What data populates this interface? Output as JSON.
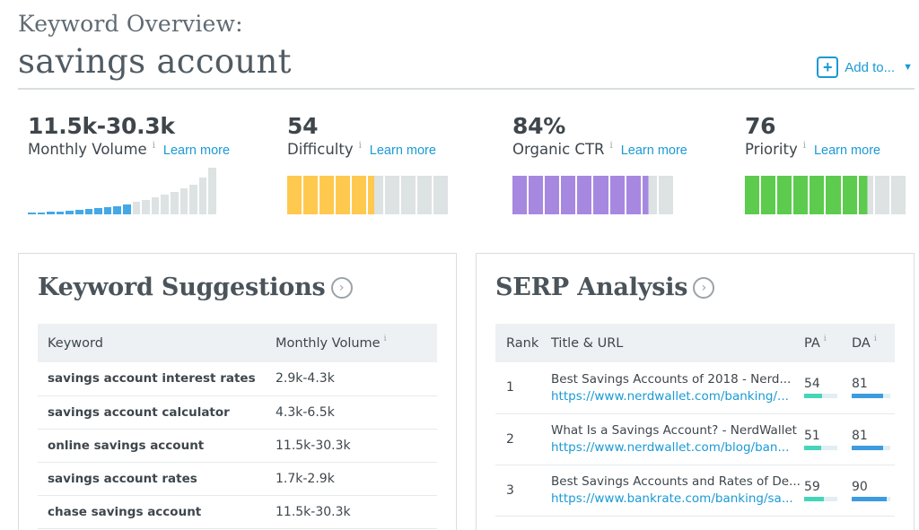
{
  "header": {
    "over_title": "Keyword Overview:",
    "keyword": "savings account",
    "add_to_label": "Add to..."
  },
  "metrics": [
    {
      "value": "11.5k-30.3k",
      "label": "Monthly Volume",
      "info": "i",
      "learn_more": "Learn more",
      "bar_type": "volume",
      "bar_count": 20,
      "filled_count": 11,
      "bar_levels": [
        0.04,
        0.04,
        0.05,
        0.06,
        0.08,
        0.09,
        0.11,
        0.13,
        0.15,
        0.18,
        0.22,
        0.27,
        0.31,
        0.36,
        0.42,
        0.49,
        0.56,
        0.64,
        0.78,
        1.0
      ],
      "fill_color": "#43a8e6",
      "empty_color": "#dde2e3"
    },
    {
      "value": "54",
      "label": "Difficulty",
      "info": "i",
      "learn_more": "Learn more",
      "bar_type": "level",
      "bar_count": 10,
      "filled_fraction": 0.54,
      "fill_color": "#ffc94f",
      "empty_color": "#dde2e3"
    },
    {
      "value": "84%",
      "label": "Organic CTR",
      "info": "i",
      "learn_more": "Learn more",
      "bar_type": "level",
      "bar_count": 10,
      "filled_fraction": 0.84,
      "fill_color": "#a788e0",
      "empty_color": "#dde2e3"
    },
    {
      "value": "76",
      "label": "Priority",
      "info": "i",
      "learn_more": "Learn more",
      "bar_type": "level",
      "bar_count": 10,
      "filled_fraction": 0.76,
      "fill_color": "#5ccb4e",
      "empty_color": "#dde2e3"
    }
  ],
  "keyword_suggestions": {
    "title": "Keyword Suggestions",
    "columns": [
      "Keyword",
      "Monthly Volume"
    ],
    "volume_info": "i",
    "rows": [
      {
        "keyword": "savings account interest rates",
        "volume": "2.9k-4.3k"
      },
      {
        "keyword": "savings account calculator",
        "volume": "4.3k-6.5k"
      },
      {
        "keyword": "online savings account",
        "volume": "11.5k-30.3k"
      },
      {
        "keyword": "savings account rates",
        "volume": "1.7k-2.9k"
      },
      {
        "keyword": "chase savings account",
        "volume": "11.5k-30.3k"
      }
    ]
  },
  "serp_analysis": {
    "title": "SERP Analysis",
    "columns": [
      "Rank",
      "Title & URL",
      "PA",
      "DA"
    ],
    "pa_info": "i",
    "da_info": "i",
    "pa_color": "#45d5b9",
    "da_color": "#3d9be0",
    "rows": [
      {
        "rank": "1",
        "title": "Best Savings Accounts of 2018 - Nerd...",
        "url": "https://www.nerdwallet.com/banking/...",
        "pa": "54",
        "da": "81"
      },
      {
        "rank": "2",
        "title": "What Is a Savings Account? - NerdWallet",
        "url": "https://www.nerdwallet.com/blog/ban...",
        "pa": "51",
        "da": "81"
      },
      {
        "rank": "3",
        "title": "Best Savings Accounts and Rates of De...",
        "url": "https://www.bankrate.com/banking/sa...",
        "pa": "59",
        "da": "90"
      }
    ]
  }
}
